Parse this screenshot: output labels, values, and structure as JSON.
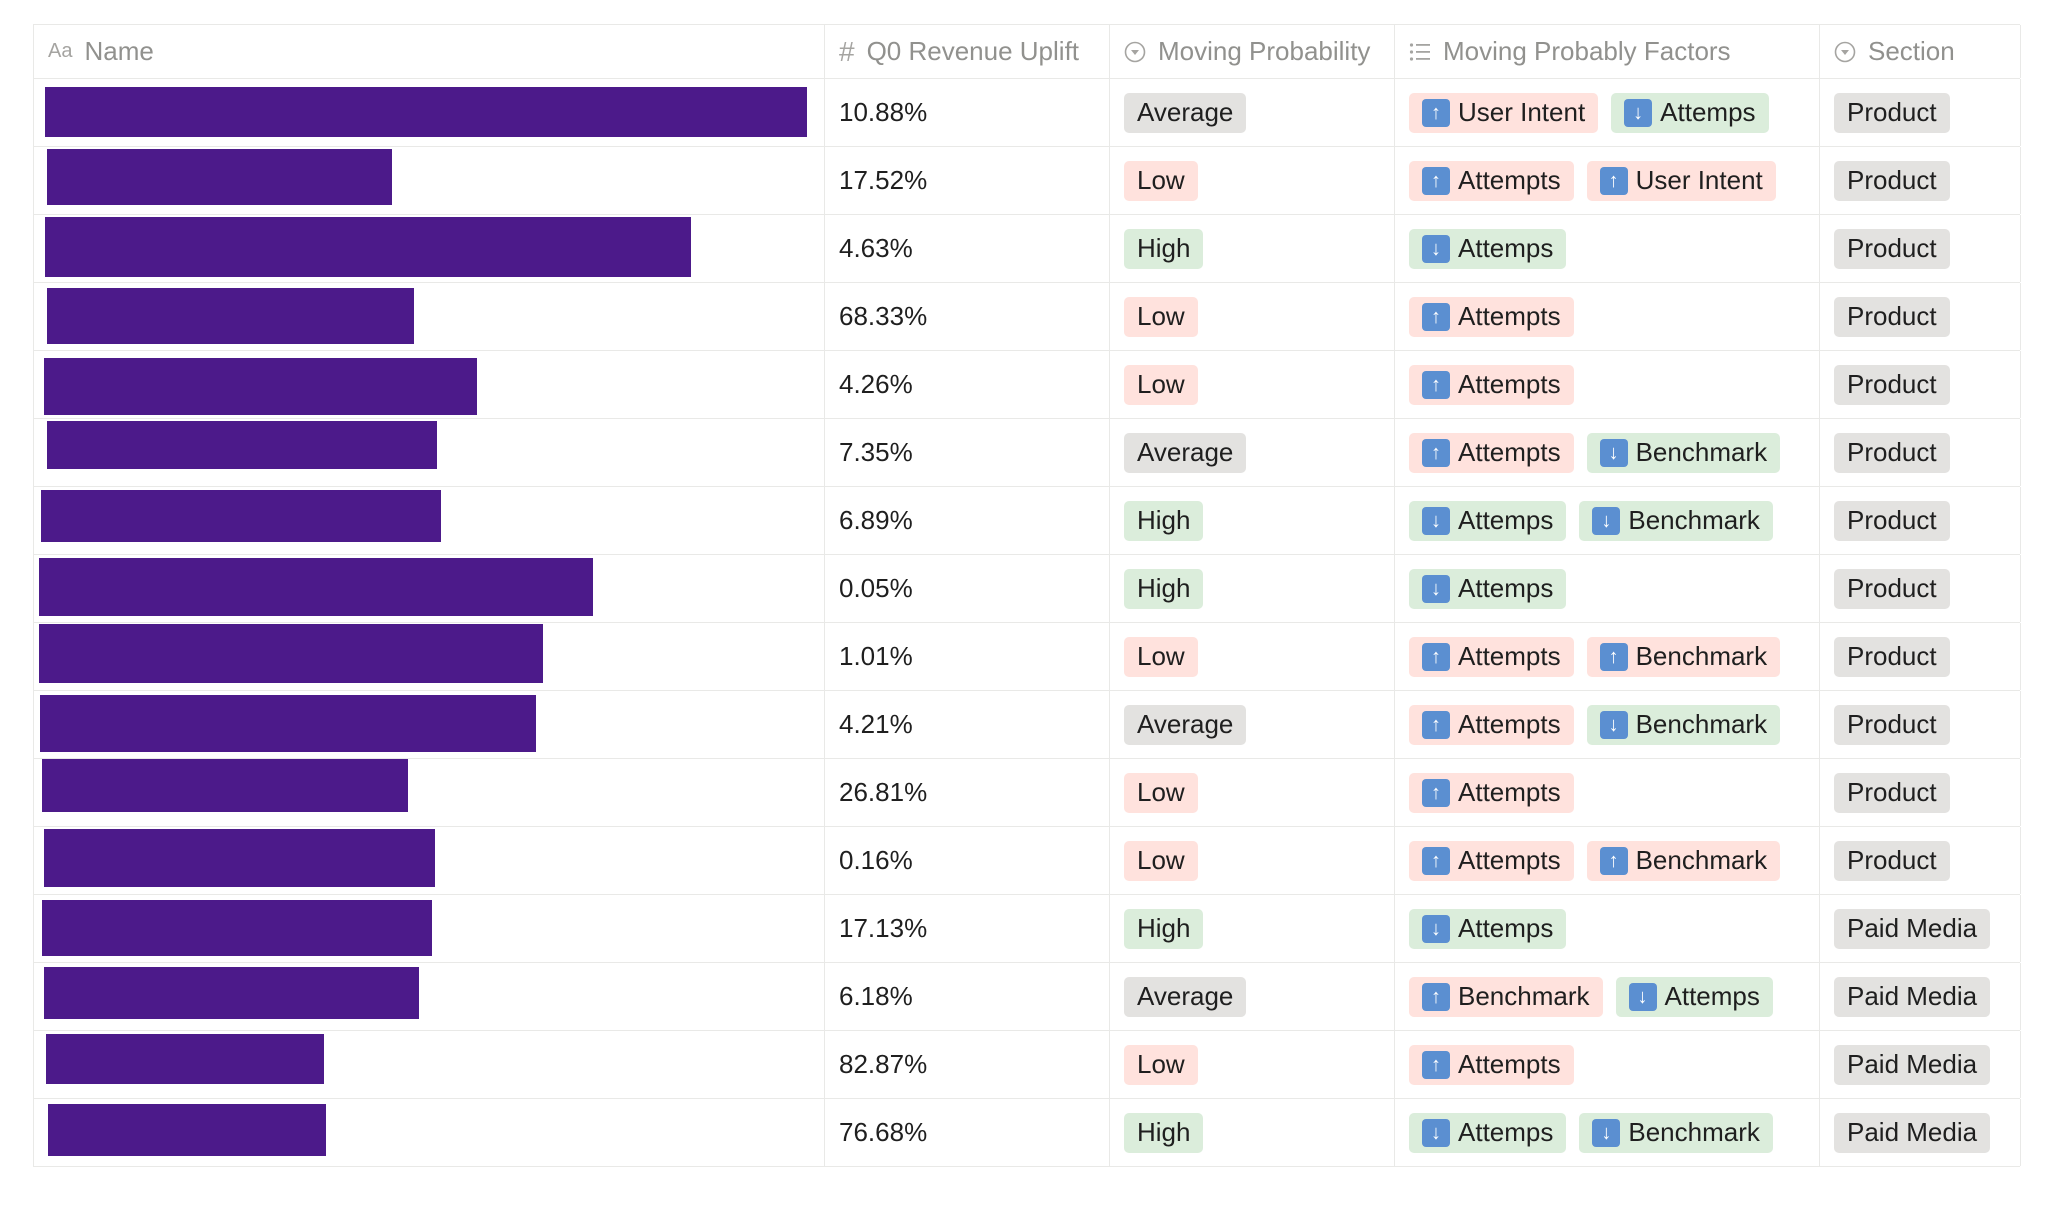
{
  "columns": {
    "name": {
      "label": "Name",
      "icon": "text-property-icon",
      "icon_glyph": "Aa"
    },
    "uplift": {
      "label": "Q0 Revenue Uplift",
      "icon": "number-property-icon",
      "icon_glyph": "#"
    },
    "probability": {
      "label": "Moving Probability",
      "icon": "select-property-icon"
    },
    "factors": {
      "label": "Moving Probably Factors",
      "icon": "multi-select-property-icon"
    },
    "section": {
      "label": "Section",
      "icon": "select-property-icon"
    }
  },
  "colors": {
    "redaction": "#4c1a8a",
    "tag_gray": "#e3e2e0",
    "tag_red": "#ffe2dd",
    "tag_green": "#dbeddb",
    "arrow_badge": "#5b8fd1"
  },
  "rows": [
    {
      "uplift": "10.88%",
      "probability": {
        "label": "Average",
        "color": "gray"
      },
      "factors": [
        {
          "label": "User Intent",
          "color": "red",
          "arrow": "⬆"
        },
        {
          "label": "Attemps",
          "color": "green",
          "arrow": "⬇"
        }
      ],
      "section": "Product"
    },
    {
      "uplift": "17.52%",
      "probability": {
        "label": "Low",
        "color": "red"
      },
      "factors": [
        {
          "label": "Attempts",
          "color": "red",
          "arrow": "⬆"
        },
        {
          "label": "User Intent",
          "color": "red",
          "arrow": "⬆"
        }
      ],
      "section": "Product"
    },
    {
      "uplift": "4.63%",
      "probability": {
        "label": "High",
        "color": "green"
      },
      "factors": [
        {
          "label": "Attemps",
          "color": "green",
          "arrow": "⬇"
        }
      ],
      "section": "Product"
    },
    {
      "uplift": "68.33%",
      "probability": {
        "label": "Low",
        "color": "red"
      },
      "factors": [
        {
          "label": "Attempts",
          "color": "red",
          "arrow": "⬆"
        }
      ],
      "section": "Product"
    },
    {
      "uplift": "4.26%",
      "probability": {
        "label": "Low",
        "color": "red"
      },
      "factors": [
        {
          "label": "Attempts",
          "color": "red",
          "arrow": "⬆"
        }
      ],
      "section": "Product"
    },
    {
      "uplift": "7.35%",
      "probability": {
        "label": "Average",
        "color": "gray"
      },
      "factors": [
        {
          "label": "Attempts",
          "color": "red",
          "arrow": "⬆"
        },
        {
          "label": "Benchmark",
          "color": "green",
          "arrow": "⬇"
        }
      ],
      "section": "Product"
    },
    {
      "uplift": "6.89%",
      "probability": {
        "label": "High",
        "color": "green"
      },
      "factors": [
        {
          "label": "Attemps",
          "color": "green",
          "arrow": "⬇"
        },
        {
          "label": "Benchmark",
          "color": "green",
          "arrow": "⬇"
        }
      ],
      "section": "Product"
    },
    {
      "uplift": "0.05%",
      "probability": {
        "label": "High",
        "color": "green"
      },
      "factors": [
        {
          "label": "Attemps",
          "color": "green",
          "arrow": "⬇"
        }
      ],
      "section": "Product"
    },
    {
      "uplift": "1.01%",
      "probability": {
        "label": "Low",
        "color": "red"
      },
      "factors": [
        {
          "label": "Attempts",
          "color": "red",
          "arrow": "⬆"
        },
        {
          "label": "Benchmark",
          "color": "red",
          "arrow": "⬆"
        }
      ],
      "section": "Product"
    },
    {
      "uplift": "4.21%",
      "probability": {
        "label": "Average",
        "color": "gray"
      },
      "factors": [
        {
          "label": "Attempts",
          "color": "red",
          "arrow": "⬆"
        },
        {
          "label": "Benchmark",
          "color": "green",
          "arrow": "⬇"
        }
      ],
      "section": "Product"
    },
    {
      "uplift": "26.81%",
      "probability": {
        "label": "Low",
        "color": "red"
      },
      "factors": [
        {
          "label": "Attempts",
          "color": "red",
          "arrow": "⬆"
        }
      ],
      "section": "Product"
    },
    {
      "uplift": "0.16%",
      "probability": {
        "label": "Low",
        "color": "red"
      },
      "factors": [
        {
          "label": "Attempts",
          "color": "red",
          "arrow": "⬆"
        },
        {
          "label": "Benchmark",
          "color": "red",
          "arrow": "⬆"
        }
      ],
      "section": "Product"
    },
    {
      "uplift": "17.13%",
      "probability": {
        "label": "High",
        "color": "green"
      },
      "factors": [
        {
          "label": "Attemps",
          "color": "green",
          "arrow": "⬇"
        }
      ],
      "section": "Paid Media"
    },
    {
      "uplift": "6.18%",
      "probability": {
        "label": "Average",
        "color": "gray"
      },
      "factors": [
        {
          "label": "Benchmark",
          "color": "red",
          "arrow": "⬆"
        },
        {
          "label": "Attemps",
          "color": "green",
          "arrow": "⬇"
        }
      ],
      "section": "Paid Media"
    },
    {
      "uplift": "82.87%",
      "probability": {
        "label": "Low",
        "color": "red"
      },
      "factors": [
        {
          "label": "Attempts",
          "color": "red",
          "arrow": "⬆"
        }
      ],
      "section": "Paid Media"
    },
    {
      "uplift": "76.68%",
      "probability": {
        "label": "High",
        "color": "green"
      },
      "factors": [
        {
          "label": "Attemps",
          "color": "green",
          "arrow": "⬇"
        },
        {
          "label": "Benchmark",
          "color": "green",
          "arrow": "⬇"
        }
      ],
      "section": "Paid Media"
    }
  ]
}
